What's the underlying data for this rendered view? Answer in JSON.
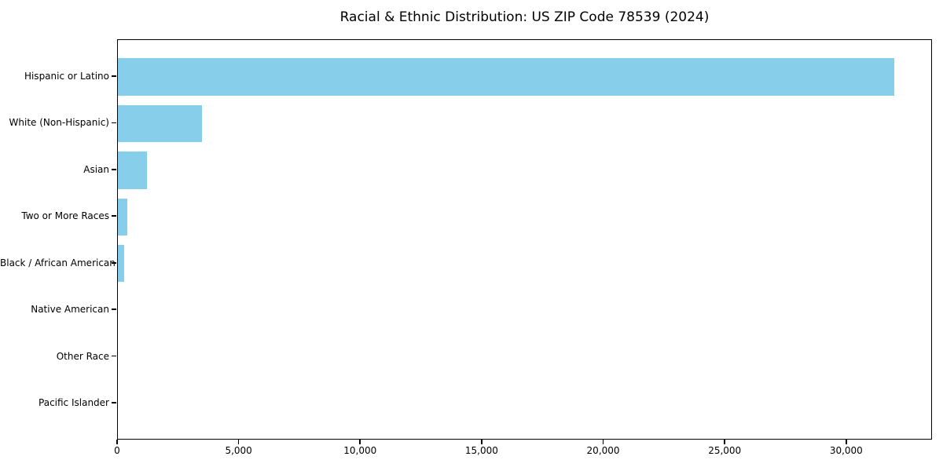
{
  "chart_data": {
    "type": "bar",
    "orientation": "horizontal",
    "title": "Racial & Ethnic Distribution: US ZIP Code 78539 (2024)",
    "categories": [
      "Hispanic or Latino",
      "White (Non-Hispanic)",
      "Asian",
      "Two or More Races",
      "Black / African American",
      "Native American",
      "Other Race",
      "Pacific Islander"
    ],
    "values": [
      31940,
      3450,
      1190,
      380,
      250,
      0,
      0,
      0
    ],
    "xlabel": "",
    "ylabel": "",
    "xlim": [
      0,
      33530
    ],
    "xticks": [
      0,
      5000,
      10000,
      15000,
      20000,
      25000,
      30000
    ],
    "xtick_labels": [
      "0",
      "5,000",
      "10,000",
      "15,000",
      "20,000",
      "25,000",
      "30,000"
    ],
    "grid": false,
    "legend": "none",
    "colors": {
      "bar": "#87CEEB",
      "axis": "#000000",
      "text": "#000000",
      "background": "#ffffff"
    }
  }
}
